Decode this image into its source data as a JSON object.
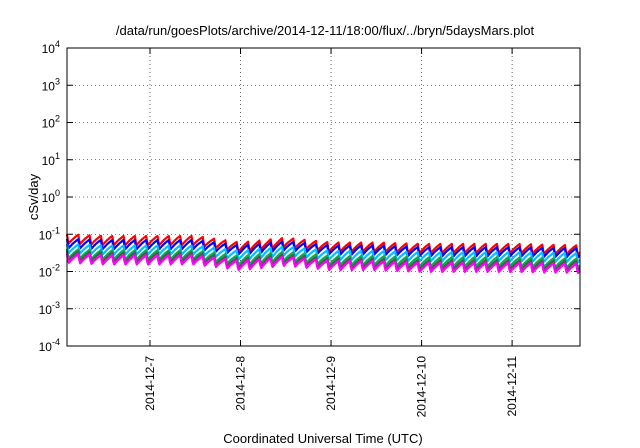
{
  "chart_data": {
    "type": "line",
    "title": "/data/run/goesPlots/archive/2014-12-11/18:00/flux/../bryn/5daysMars.plot",
    "xlabel": "Coordinated Universal Time (UTC)",
    "ylabel": "cSv/day",
    "yscale": "log",
    "ylim": [
      0.0001,
      10000
    ],
    "y_ticks": [
      {
        "value": 0.0001,
        "mantissa": "10",
        "exp": "-4"
      },
      {
        "value": 0.001,
        "mantissa": "10",
        "exp": "-3"
      },
      {
        "value": 0.01,
        "mantissa": "10",
        "exp": "-2"
      },
      {
        "value": 0.1,
        "mantissa": "10",
        "exp": "-1"
      },
      {
        "value": 1,
        "mantissa": "10",
        "exp": "0"
      },
      {
        "value": 10,
        "mantissa": "10",
        "exp": "1"
      },
      {
        "value": 100,
        "mantissa": "10",
        "exp": "2"
      },
      {
        "value": 1000,
        "mantissa": "10",
        "exp": "3"
      },
      {
        "value": 10000,
        "mantissa": "10",
        "exp": "4"
      }
    ],
    "xlim": [
      "2014-12-06T02:00",
      "2014-12-11T18:00"
    ],
    "x_ticks": [
      "2014-12-7",
      "2014-12-8",
      "2014-12-9",
      "2014-12-10",
      "2014-12-11"
    ],
    "x_tick_values": [
      "2014-12-07T00:00",
      "2014-12-08T00:00",
      "2014-12-09T00:00",
      "2014-12-10T00:00",
      "2014-12-11T00:00"
    ],
    "grid": true,
    "legend": "none",
    "series": [
      {
        "color": "#ff0000",
        "values": [
          [
            "2014-12-06T02:00",
            0.1
          ],
          [
            "2014-12-06T12:00",
            0.09
          ],
          [
            "2014-12-07T00:00",
            0.09
          ],
          [
            "2014-12-07T12:00",
            0.09
          ],
          [
            "2014-12-08T00:00",
            0.06
          ],
          [
            "2014-12-08T12:00",
            0.08
          ],
          [
            "2014-12-09T00:00",
            0.06
          ],
          [
            "2014-12-09T12:00",
            0.06
          ],
          [
            "2014-12-10T00:00",
            0.055
          ],
          [
            "2014-12-10T12:00",
            0.055
          ],
          [
            "2014-12-11T00:00",
            0.055
          ],
          [
            "2014-12-11T18:00",
            0.05
          ]
        ]
      },
      {
        "color": "#0000ff",
        "values": [
          [
            "2014-12-06T02:00",
            0.075
          ],
          [
            "2014-12-06T12:00",
            0.07
          ],
          [
            "2014-12-07T00:00",
            0.07
          ],
          [
            "2014-12-07T12:00",
            0.07
          ],
          [
            "2014-12-08T00:00",
            0.05
          ],
          [
            "2014-12-08T12:00",
            0.065
          ],
          [
            "2014-12-09T00:00",
            0.05
          ],
          [
            "2014-12-09T12:00",
            0.05
          ],
          [
            "2014-12-10T00:00",
            0.045
          ],
          [
            "2014-12-10T12:00",
            0.045
          ],
          [
            "2014-12-11T00:00",
            0.045
          ],
          [
            "2014-12-11T18:00",
            0.042
          ]
        ]
      },
      {
        "color": "#00bfff",
        "values": [
          [
            "2014-12-06T02:00",
            0.055
          ],
          [
            "2014-12-06T12:00",
            0.05
          ],
          [
            "2014-12-07T00:00",
            0.05
          ],
          [
            "2014-12-07T12:00",
            0.05
          ],
          [
            "2014-12-08T00:00",
            0.036
          ],
          [
            "2014-12-08T12:00",
            0.047
          ],
          [
            "2014-12-09T00:00",
            0.036
          ],
          [
            "2014-12-09T12:00",
            0.036
          ],
          [
            "2014-12-10T00:00",
            0.033
          ],
          [
            "2014-12-10T12:00",
            0.033
          ],
          [
            "2014-12-11T00:00",
            0.033
          ],
          [
            "2014-12-11T18:00",
            0.031
          ]
        ]
      },
      {
        "color": "#00b050",
        "values": [
          [
            "2014-12-06T02:00",
            0.04
          ],
          [
            "2014-12-06T12:00",
            0.037
          ],
          [
            "2014-12-07T00:00",
            0.037
          ],
          [
            "2014-12-07T12:00",
            0.037
          ],
          [
            "2014-12-08T00:00",
            0.026
          ],
          [
            "2014-12-08T12:00",
            0.034
          ],
          [
            "2014-12-09T00:00",
            0.026
          ],
          [
            "2014-12-09T12:00",
            0.026
          ],
          [
            "2014-12-10T00:00",
            0.024
          ],
          [
            "2014-12-10T12:00",
            0.024
          ],
          [
            "2014-12-11T00:00",
            0.024
          ],
          [
            "2014-12-11T18:00",
            0.022
          ]
        ]
      },
      {
        "color": "#555555",
        "values": [
          [
            "2014-12-06T02:00",
            0.035
          ],
          [
            "2014-12-06T12:00",
            0.032
          ],
          [
            "2014-12-07T00:00",
            0.032
          ],
          [
            "2014-12-07T12:00",
            0.032
          ],
          [
            "2014-12-08T00:00",
            0.022
          ],
          [
            "2014-12-08T12:00",
            0.029
          ],
          [
            "2014-12-09T00:00",
            0.022
          ],
          [
            "2014-12-09T12:00",
            0.022
          ],
          [
            "2014-12-10T00:00",
            0.02
          ],
          [
            "2014-12-10T12:00",
            0.02
          ],
          [
            "2014-12-11T00:00",
            0.02
          ],
          [
            "2014-12-11T18:00",
            0.019
          ]
        ]
      },
      {
        "color": "#ff00ff",
        "values": [
          [
            "2014-12-06T02:00",
            0.03
          ],
          [
            "2014-12-06T12:00",
            0.027
          ],
          [
            "2014-12-07T00:00",
            0.027
          ],
          [
            "2014-12-07T12:00",
            0.027
          ],
          [
            "2014-12-08T00:00",
            0.019
          ],
          [
            "2014-12-08T12:00",
            0.025
          ],
          [
            "2014-12-09T00:00",
            0.019
          ],
          [
            "2014-12-09T12:00",
            0.019
          ],
          [
            "2014-12-10T00:00",
            0.017
          ],
          [
            "2014-12-10T12:00",
            0.017
          ],
          [
            "2014-12-11T00:00",
            0.017
          ],
          [
            "2014-12-11T18:00",
            0.016
          ]
        ]
      }
    ],
    "cycle_period_hours": 3,
    "cycle_min_ratio": 0.55
  }
}
